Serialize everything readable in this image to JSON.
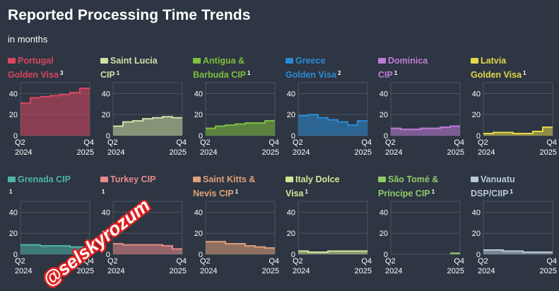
{
  "header": {
    "title": "Reported Processing Time Trends",
    "subtitle": "in months"
  },
  "watermark": "@selskyrozum",
  "chart_data": {
    "type": "area",
    "title": "Reported Processing Time Trends",
    "subtitle": "in months",
    "ylim": [
      0,
      45
    ],
    "yticks": [
      "0",
      "20",
      "40"
    ],
    "x_ticks": [
      {
        "quarter": "Q2",
        "year": "2024"
      },
      {
        "quarter": "Q4",
        "year": "2025"
      }
    ],
    "x": [
      "Q2 2024",
      "Q3 2024",
      "Q4 2024",
      "Q1 2025",
      "Q2 2025",
      "Q3 2025",
      "Q4 2025"
    ],
    "series": [
      {
        "name": "Portugal Golden Visa",
        "line1": "Portugal",
        "line2": "Golden Visa",
        "note": "3",
        "color": "#d9455f",
        "values": [
          31,
          36,
          37,
          38,
          39,
          41,
          45
        ]
      },
      {
        "name": "Saint Lucia CIP",
        "line1": "Saint Lucia",
        "line2": "CIP",
        "note": "1",
        "color": "#cfe0a8",
        "values": [
          9,
          13,
          14,
          16,
          17,
          18,
          17
        ]
      },
      {
        "name": "Antigua & Barbuda CIP",
        "line1": "Antigua &",
        "line2": "Barbuda CIP",
        "note": "1",
        "color": "#7fbf3f",
        "values": [
          7,
          9,
          10,
          11,
          12,
          12,
          14
        ]
      },
      {
        "name": "Greece Golden Visa",
        "line1": "Greece",
        "line2": "Golden Visa",
        "note": "2",
        "color": "#2b8bd6",
        "values": [
          19,
          20,
          17,
          15,
          13,
          10,
          14
        ]
      },
      {
        "name": "Dominica CIP",
        "line1": "Dominica",
        "line2": "CIP",
        "note": "1",
        "color": "#c07ad9",
        "values": [
          7,
          6,
          6,
          7,
          7,
          8,
          9
        ]
      },
      {
        "name": "Latvia Golden Visa",
        "line1": "Latvia",
        "line2": "Golden Visa",
        "note": "1",
        "color": "#e2d64a",
        "values": [
          2,
          3,
          3,
          2,
          2,
          4,
          8
        ]
      },
      {
        "name": "Grenada CIP",
        "line1": "Grenada CIP",
        "line2": "",
        "note": "1",
        "color": "#4fb3a7",
        "values": [
          9,
          9,
          8,
          8,
          8,
          7,
          7
        ]
      },
      {
        "name": "Turkey CIP",
        "line1": "Turkey CIP",
        "line2": "",
        "note": "1",
        "color": "#e78b8b",
        "values": [
          10,
          9,
          9,
          9,
          9,
          8,
          5
        ]
      },
      {
        "name": "Saint Kitts & Nevis CIP",
        "line1": "Saint Kitts &",
        "line2": "Nevis CIP",
        "note": "1",
        "color": "#e0a07a",
        "values": [
          12,
          12,
          10,
          10,
          8,
          7,
          6
        ]
      },
      {
        "name": "Italy Dolce Visa",
        "line1": "Italy Dolce",
        "line2": "Visa",
        "note": "1",
        "color": "#d2e69a",
        "values": [
          3,
          2,
          2,
          3,
          3,
          3,
          3
        ]
      },
      {
        "name": "São Tomé & Príncipe CIP",
        "line1": "São Tomé &",
        "line2": "Príncipe CIP",
        "note": "1",
        "color": "#8fc96a",
        "values": [
          null,
          null,
          null,
          null,
          null,
          null,
          1
        ]
      },
      {
        "name": "Vanuatu DSP/CIIP",
        "line1": "Vanuatu",
        "line2": "DSP/CIIP",
        "note": "1",
        "color": "#b9c8d6",
        "values": [
          4,
          4,
          3,
          3,
          2,
          2,
          2
        ]
      }
    ]
  }
}
